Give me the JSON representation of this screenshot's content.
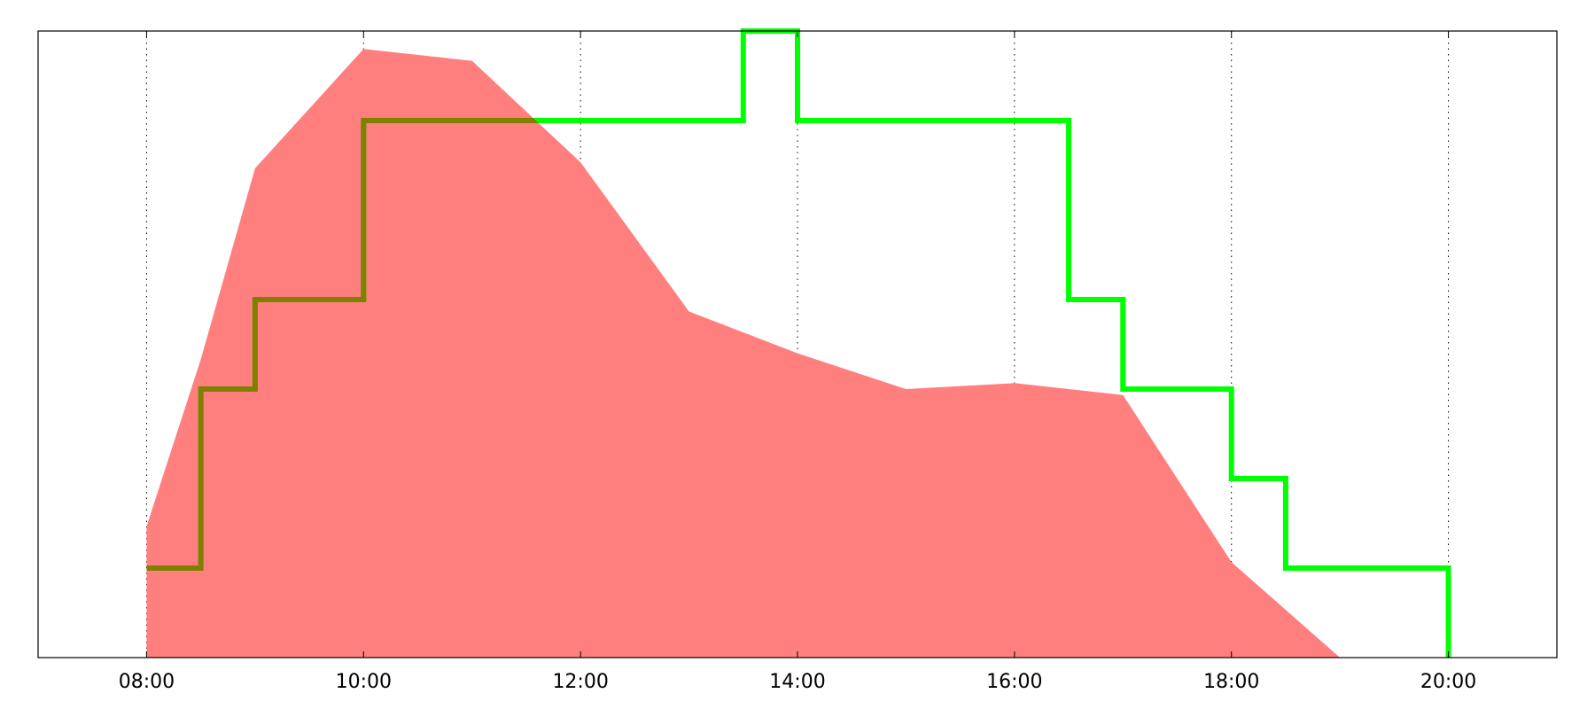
{
  "chart_data": {
    "type": "area",
    "xlim": [
      "07:00",
      "21:00"
    ],
    "x_ticks": [
      "08:00",
      "10:00",
      "12:00",
      "14:00",
      "16:00",
      "18:00",
      "20:00"
    ],
    "grid": "vertical dotted",
    "legend": "none",
    "series": [
      {
        "type": "area",
        "color": "#ff7f7f",
        "x": [
          "08:00",
          "08:30",
          "09:00",
          "10:00",
          "11:00",
          "12:00",
          "13:00",
          "14:00",
          "15:00",
          "16:00",
          "17:00",
          "18:00",
          "19:00"
        ],
        "values": [
          0.22,
          0.5,
          0.82,
          1.02,
          1.0,
          0.83,
          0.58,
          0.51,
          0.45,
          0.46,
          0.44,
          0.16,
          0.0
        ]
      },
      {
        "type": "step",
        "color": "#00ff00",
        "x": [
          "08:00",
          "08:30",
          "09:00",
          "10:00",
          "13:30",
          "14:00",
          "16:30",
          "17:00",
          "18:00",
          "18:30",
          "20:00"
        ],
        "values": [
          0.15,
          0.45,
          0.6,
          0.9,
          1.05,
          0.9,
          0.6,
          0.45,
          0.3,
          0.15,
          0.0
        ]
      }
    ],
    "ylim": [
      0,
      1.05
    ]
  }
}
